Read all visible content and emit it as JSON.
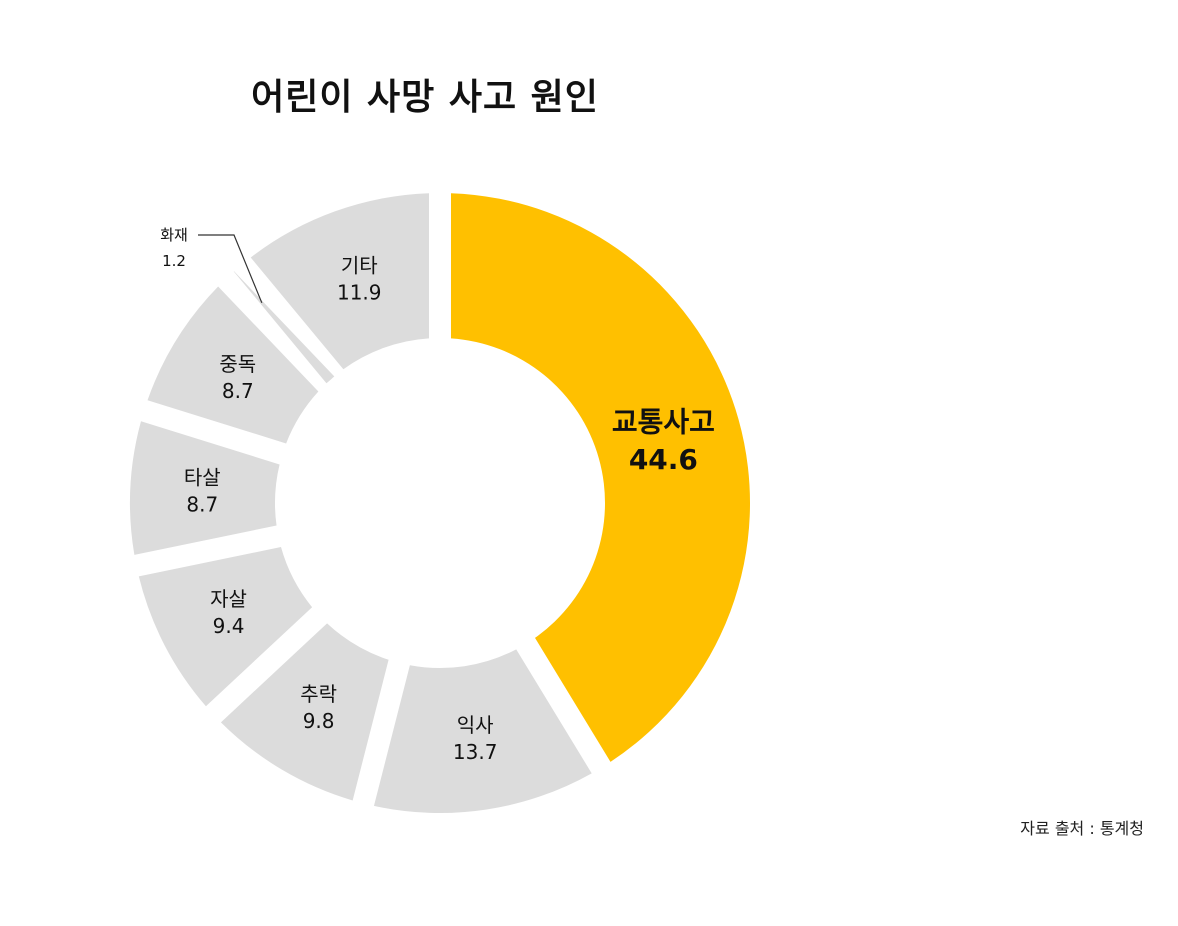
{
  "title": "어린이 사망 사고 원인",
  "source": "자료 출처 : 통계청",
  "colors": {
    "highlight": "#FFC000",
    "default": "#DCDCDC",
    "text": "#111111",
    "leader_line": "#333333"
  },
  "chart_data": {
    "type": "pie",
    "variant": "donut",
    "title": "어린이 사망 사고 원인",
    "categories": [
      "교통사고",
      "익사",
      "추락",
      "자살",
      "타살",
      "중독",
      "화재",
      "기타"
    ],
    "values": [
      44.6,
      13.7,
      9.8,
      9.4,
      8.7,
      8.7,
      1.2,
      11.9
    ],
    "value_labels": [
      "44.6",
      "13.7",
      "9.8",
      "9.4",
      "8.7",
      "8.7",
      "1.2",
      "11.9"
    ],
    "highlight": "교통사고",
    "start": "12 o'clock",
    "direction": "clockwise",
    "legend": "none"
  }
}
